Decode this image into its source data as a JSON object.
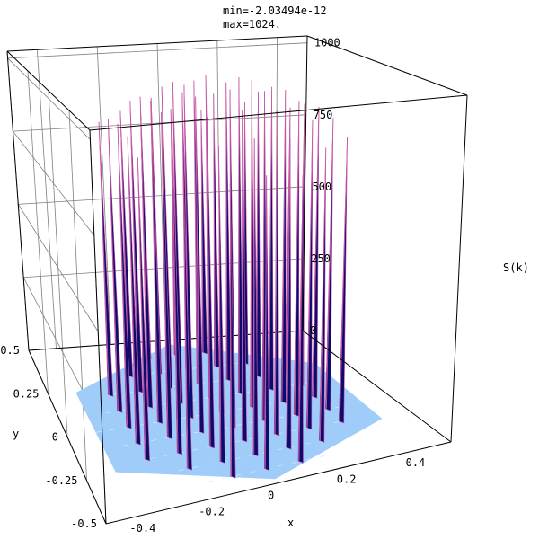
{
  "header": {
    "min_text": "min=-2.03494e-12",
    "max_text": "max=1024."
  },
  "chart_data": {
    "type": "surface3d",
    "title": "",
    "xlabel": "x",
    "ylabel": "y",
    "zlabel": "S(k)",
    "xlim": [
      -0.5,
      0.5
    ],
    "ylim": [
      -0.5,
      0.5
    ],
    "zlim": [
      0,
      1024
    ],
    "x_ticks": [
      "-0.4",
      "-0.2",
      "0",
      "0.2",
      "0.4"
    ],
    "y_ticks": [
      "-0.5",
      "-0.25",
      "0",
      "0.25",
      "0.5"
    ],
    "z_ticks": [
      "0",
      "250",
      "500",
      "750",
      "1000"
    ],
    "min": -2.03494e-12,
    "max": 1024,
    "grid": true,
    "peak_spacing": 0.1,
    "peak_value": 1024,
    "colors": {
      "base_plane": "#9fccf8",
      "base_lines": "#c8f0ff",
      "peak_dark": "#0c0c6e",
      "peak_edge": "#c85aa8",
      "box": "#000000",
      "grid": "#808080"
    }
  }
}
